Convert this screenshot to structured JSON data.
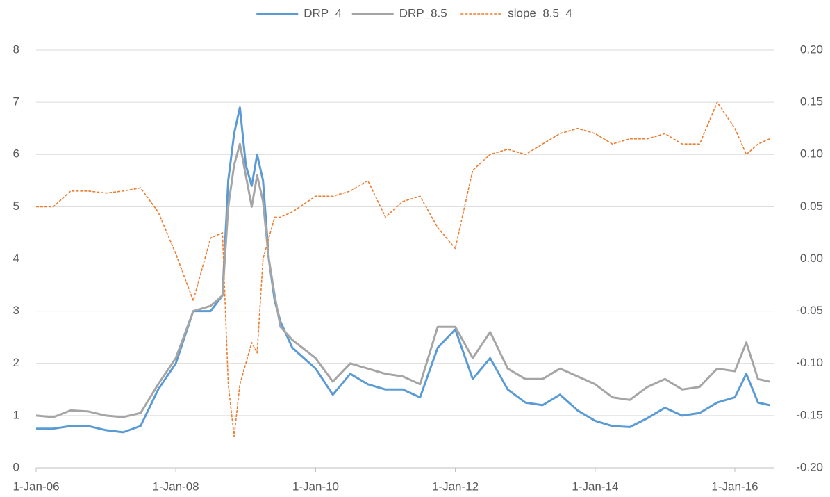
{
  "chart_data": {
    "type": "line",
    "x": [
      "2006-01-01",
      "2006-04-01",
      "2006-07-01",
      "2006-10-01",
      "2007-01-01",
      "2007-04-01",
      "2007-07-01",
      "2007-10-01",
      "2008-01-01",
      "2008-04-01",
      "2008-07-01",
      "2008-09-01",
      "2008-10-01",
      "2008-11-01",
      "2008-12-01",
      "2009-01-01",
      "2009-02-01",
      "2009-03-01",
      "2009-04-01",
      "2009-05-01",
      "2009-06-01",
      "2009-07-01",
      "2009-09-01",
      "2010-01-01",
      "2010-04-01",
      "2010-07-01",
      "2010-10-01",
      "2011-01-01",
      "2011-04-01",
      "2011-07-01",
      "2011-10-01",
      "2012-01-01",
      "2012-04-01",
      "2012-07-01",
      "2012-10-01",
      "2013-01-01",
      "2013-04-01",
      "2013-07-01",
      "2013-10-01",
      "2014-01-01",
      "2014-04-01",
      "2014-07-01",
      "2014-10-01",
      "2015-01-01",
      "2015-04-01",
      "2015-07-01",
      "2015-10-01",
      "2016-01-01",
      "2016-03-01",
      "2016-05-01",
      "2016-07-01"
    ],
    "series": [
      {
        "name": "DRP_4",
        "color": "#5b9bd5",
        "values": [
          0.75,
          0.75,
          0.8,
          0.8,
          0.72,
          0.68,
          0.8,
          1.5,
          2.0,
          3.0,
          3.0,
          3.3,
          5.5,
          6.4,
          6.9,
          5.8,
          5.4,
          6.0,
          5.5,
          4.0,
          3.2,
          2.8,
          2.3,
          1.9,
          1.4,
          1.8,
          1.6,
          1.5,
          1.5,
          1.35,
          2.3,
          2.65,
          1.7,
          2.1,
          1.5,
          1.25,
          1.2,
          1.4,
          1.1,
          0.9,
          0.8,
          0.78,
          0.95,
          1.15,
          1.0,
          1.05,
          1.25,
          1.35,
          1.8,
          1.25,
          1.2
        ]
      },
      {
        "name": "DRP_8.5",
        "color": "#a5a5a5",
        "values": [
          1.0,
          0.97,
          1.1,
          1.08,
          1.0,
          0.97,
          1.05,
          1.6,
          2.1,
          3.0,
          3.1,
          3.3,
          5.0,
          5.8,
          6.2,
          5.6,
          5.0,
          5.6,
          5.1,
          4.0,
          3.3,
          2.7,
          2.45,
          2.1,
          1.65,
          2.0,
          1.9,
          1.8,
          1.75,
          1.6,
          2.7,
          2.7,
          2.1,
          2.6,
          1.9,
          1.7,
          1.7,
          1.9,
          1.75,
          1.6,
          1.35,
          1.3,
          1.55,
          1.7,
          1.5,
          1.55,
          1.9,
          1.85,
          2.4,
          1.7,
          1.65
        ]
      },
      {
        "name": "slope_8.5_4",
        "color": "#ed7d31",
        "axis": "y2",
        "dashed": true,
        "values": [
          0.05,
          0.05,
          0.065,
          0.065,
          0.063,
          0.065,
          0.068,
          0.045,
          0.005,
          -0.04,
          0.02,
          0.025,
          -0.12,
          -0.17,
          -0.12,
          -0.1,
          -0.08,
          -0.09,
          0.0,
          0.02,
          0.04,
          0.04,
          0.045,
          0.06,
          0.06,
          0.065,
          0.075,
          0.04,
          0.055,
          0.06,
          0.03,
          0.01,
          0.085,
          0.1,
          0.105,
          0.1,
          0.11,
          0.12,
          0.125,
          0.12,
          0.11,
          0.115,
          0.115,
          0.12,
          0.11,
          0.11,
          0.15,
          0.125,
          0.1,
          0.11,
          0.115
        ]
      }
    ],
    "xlim": [
      "2006-01-01",
      "2016-07-26"
    ],
    "xticks": [
      {
        "value": "2006-01-01",
        "label": "1-Jan-06"
      },
      {
        "value": "2008-01-01",
        "label": "1-Jan-08"
      },
      {
        "value": "2010-01-01",
        "label": "1-Jan-10"
      },
      {
        "value": "2012-01-01",
        "label": "1-Jan-12"
      },
      {
        "value": "2014-01-01",
        "label": "1-Jan-14"
      },
      {
        "value": "2016-01-01",
        "label": "1-Jan-16"
      }
    ],
    "ylim": [
      0,
      8
    ],
    "yticks": [
      0,
      1,
      2,
      3,
      4,
      5,
      6,
      7,
      8
    ],
    "y2lim": [
      -0.2,
      0.2
    ],
    "y2ticks": [
      {
        "value": -0.2,
        "label": "-0.20"
      },
      {
        "value": -0.15,
        "label": "-0.15"
      },
      {
        "value": -0.1,
        "label": "-0.10"
      },
      {
        "value": -0.05,
        "label": "-0.05"
      },
      {
        "value": 0,
        "label": "0.00"
      },
      {
        "value": 0.05,
        "label": "0.05"
      },
      {
        "value": 0.1,
        "label": "0.10"
      },
      {
        "value": 0.15,
        "label": "0.15"
      },
      {
        "value": 0.2,
        "label": "0.20"
      }
    ],
    "grid": true,
    "legend": "top"
  }
}
